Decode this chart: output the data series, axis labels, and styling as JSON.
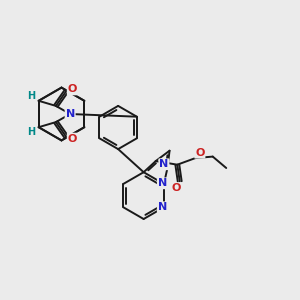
{
  "bg_color": "#ebebeb",
  "bond_color": "#1a1a1a",
  "nitrogen_color": "#2222cc",
  "oxygen_color": "#cc2222",
  "stereo_color": "#008888",
  "bond_width": 1.4,
  "fig_size": [
    3.0,
    3.0
  ],
  "dpi": 100,
  "xlim": [
    0,
    10
  ],
  "ylim": [
    0,
    10
  ]
}
